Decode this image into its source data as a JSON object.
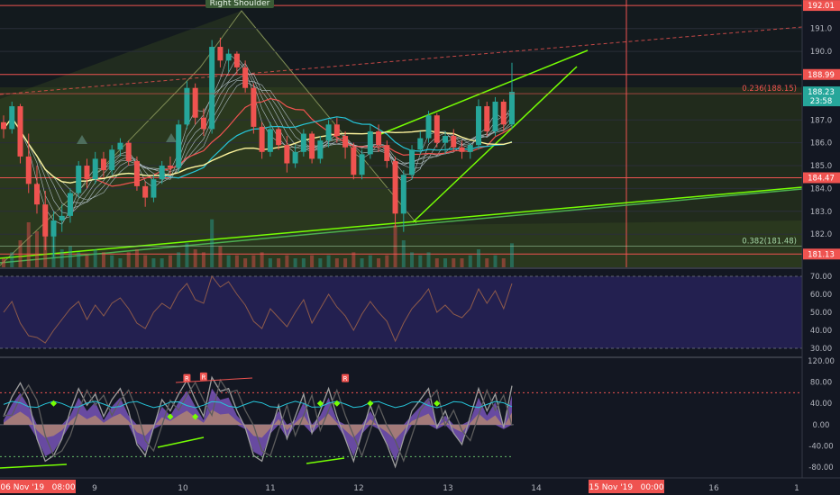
{
  "chart_data": {
    "type": "candlestick",
    "price_axis": {
      "ticks": [
        182.0,
        183.0,
        184.0,
        185.0,
        186.0,
        187.0,
        190.0,
        191.0
      ],
      "range": [
        180.55,
        192.25
      ],
      "badges": [
        {
          "label": "192.01",
          "value": 192.01,
          "color": "#ef5350",
          "text_color": "#ffffff"
        },
        {
          "label": "188.99",
          "value": 188.99,
          "color": "#ef5350",
          "text_color": "#ffffff"
        },
        {
          "label": "188.23",
          "value": 188.23,
          "color": "#26a69a",
          "text_color": "#ffffff",
          "sub": "23:58"
        },
        {
          "label": "184.47",
          "value": 184.47,
          "color": "#ef5350",
          "text_color": "#ffffff"
        },
        {
          "label": "181.13",
          "value": 181.13,
          "color": "#ef5350",
          "text_color": "#ffffff"
        }
      ]
    },
    "annotations": {
      "pattern_label": "Right Shoulder",
      "fib_levels": [
        {
          "label": "0.236(188.15)",
          "value": 188.15,
          "color": "#ef5350"
        },
        {
          "label": "0.382(181.48)",
          "value": 181.48,
          "color": "#a5d6a7"
        }
      ],
      "marker_letter": "R"
    },
    "horizontal_levels": [
      192.01,
      188.99,
      184.47,
      181.13
    ],
    "candles_ohlc": [
      [
        186.9,
        187.2,
        186.2,
        186.6
      ],
      [
        186.6,
        187.8,
        186.4,
        187.6
      ],
      [
        187.6,
        187.7,
        185.1,
        185.4
      ],
      [
        185.4,
        186.4,
        183.8,
        184.2
      ],
      [
        184.2,
        185.0,
        182.9,
        183.3
      ],
      [
        183.3,
        183.9,
        181.3,
        181.9
      ],
      [
        181.9,
        183.0,
        181.0,
        182.6
      ],
      [
        182.6,
        183.3,
        182.1,
        182.8
      ],
      [
        182.8,
        184.0,
        182.5,
        183.8
      ],
      [
        183.8,
        185.2,
        183.6,
        185.0
      ],
      [
        185.0,
        185.3,
        184.0,
        184.4
      ],
      [
        184.4,
        185.6,
        184.2,
        185.3
      ],
      [
        185.3,
        185.6,
        184.5,
        184.8
      ],
      [
        184.8,
        185.9,
        184.6,
        185.7
      ],
      [
        185.7,
        186.2,
        185.4,
        186.0
      ],
      [
        186.0,
        186.1,
        185.0,
        185.2
      ],
      [
        185.2,
        185.4,
        183.9,
        184.1
      ],
      [
        184.1,
        184.3,
        183.2,
        183.6
      ],
      [
        183.6,
        184.6,
        183.4,
        184.4
      ],
      [
        184.4,
        185.2,
        184.2,
        185.0
      ],
      [
        185.0,
        185.4,
        184.6,
        184.9
      ],
      [
        184.9,
        187.0,
        184.7,
        186.8
      ],
      [
        186.8,
        188.7,
        186.6,
        188.4
      ],
      [
        188.4,
        188.6,
        186.8,
        187.1
      ],
      [
        187.1,
        187.5,
        186.3,
        186.6
      ],
      [
        186.6,
        190.5,
        186.4,
        190.2
      ],
      [
        190.2,
        190.6,
        189.3,
        189.6
      ],
      [
        189.6,
        190.1,
        189.1,
        189.9
      ],
      [
        189.9,
        190.0,
        189.0,
        189.3
      ],
      [
        189.3,
        189.6,
        188.2,
        188.4
      ],
      [
        188.4,
        188.6,
        186.4,
        186.7
      ],
      [
        186.7,
        186.9,
        185.3,
        185.6
      ],
      [
        185.6,
        186.9,
        185.4,
        186.6
      ],
      [
        186.6,
        186.7,
        185.7,
        185.9
      ],
      [
        185.9,
        186.3,
        184.7,
        185.1
      ],
      [
        185.1,
        185.9,
        184.9,
        185.6
      ],
      [
        185.6,
        186.6,
        185.4,
        186.4
      ],
      [
        186.4,
        186.5,
        185.1,
        185.3
      ],
      [
        185.3,
        186.3,
        185.1,
        186.1
      ],
      [
        186.1,
        187.0,
        185.8,
        186.8
      ],
      [
        186.8,
        187.1,
        186.0,
        186.3
      ],
      [
        186.3,
        186.5,
        185.3,
        185.8
      ],
      [
        185.8,
        186.0,
        184.4,
        184.6
      ],
      [
        184.6,
        185.7,
        184.4,
        185.5
      ],
      [
        185.5,
        186.8,
        185.3,
        186.5
      ],
      [
        186.5,
        186.8,
        185.6,
        185.9
      ],
      [
        185.9,
        186.1,
        184.9,
        185.2
      ],
      [
        185.2,
        185.4,
        182.3,
        182.9
      ],
      [
        182.9,
        184.8,
        182.1,
        184.6
      ],
      [
        184.6,
        185.9,
        184.4,
        185.7
      ],
      [
        185.7,
        186.5,
        185.5,
        186.2
      ],
      [
        186.2,
        187.4,
        186.0,
        187.2
      ],
      [
        187.2,
        187.3,
        185.8,
        186.0
      ],
      [
        186.0,
        186.5,
        185.5,
        186.3
      ],
      [
        186.3,
        186.6,
        185.6,
        185.8
      ],
      [
        185.8,
        186.1,
        185.3,
        185.6
      ],
      [
        185.6,
        186.0,
        185.3,
        185.9
      ],
      [
        185.9,
        187.9,
        185.7,
        187.6
      ],
      [
        187.6,
        187.8,
        186.3,
        186.5
      ],
      [
        186.5,
        188.0,
        186.3,
        187.8
      ],
      [
        187.8,
        187.9,
        186.5,
        186.8
      ],
      [
        186.8,
        189.5,
        186.6,
        188.23
      ]
    ],
    "volume": [
      3,
      5,
      9,
      15,
      12,
      18,
      14,
      6,
      7,
      5,
      4,
      6,
      5,
      4,
      3,
      5,
      6,
      4,
      3,
      3,
      4,
      5,
      8,
      6,
      5,
      16,
      7,
      4,
      4,
      3,
      4,
      5,
      3,
      3,
      4,
      3,
      3,
      4,
      3,
      4,
      3,
      3,
      5,
      3,
      4,
      3,
      4,
      14,
      9,
      5,
      4,
      5,
      3,
      3,
      3,
      3,
      4,
      6,
      3,
      4,
      3,
      8
    ],
    "rsi": {
      "ticks": [
        30.0,
        40.0,
        50.0,
        60.0,
        70.0
      ],
      "range": [
        26,
        74
      ],
      "upper": 70,
      "lower": 30,
      "values": [
        50,
        56,
        44,
        37,
        36,
        33,
        40,
        46,
        52,
        56,
        46,
        54,
        48,
        55,
        58,
        52,
        44,
        41,
        50,
        55,
        52,
        61,
        66,
        57,
        55,
        70,
        64,
        67,
        60,
        54,
        45,
        41,
        52,
        47,
        42,
        50,
        57,
        44,
        52,
        60,
        53,
        48,
        40,
        49,
        56,
        50,
        45,
        34,
        44,
        52,
        57,
        63,
        50,
        54,
        49,
        47,
        52,
        63,
        55,
        62,
        52,
        66
      ]
    },
    "oscillator": {
      "ticks": [
        -80.0,
        -40.0,
        0.0,
        40.0,
        80.0,
        120.0
      ],
      "range": [
        -100,
        125
      ],
      "upper_dashed": 60,
      "lower_dashed": -60,
      "wave": [
        10,
        45,
        70,
        40,
        -30,
        -70,
        -60,
        -30,
        20,
        60,
        30,
        50,
        10,
        40,
        60,
        20,
        -40,
        -60,
        -10,
        40,
        20,
        50,
        75,
        40,
        10,
        80,
        55,
        60,
        20,
        -10,
        -60,
        -70,
        -20,
        30,
        -30,
        10,
        50,
        -20,
        20,
        60,
        10,
        -30,
        -70,
        -20,
        30,
        -10,
        -40,
        -80,
        -30,
        20,
        40,
        60,
        -10,
        20,
        -20,
        -40,
        10,
        60,
        20,
        50,
        -10,
        65
      ],
      "dots": [
        [
          6,
          40
        ],
        [
          20,
          15
        ],
        [
          23,
          15
        ],
        [
          38,
          40
        ],
        [
          40,
          40
        ],
        [
          44,
          40
        ],
        [
          52,
          40
        ]
      ],
      "markers": [
        [
          22,
          85
        ],
        [
          24,
          88
        ],
        [
          41,
          85
        ]
      ]
    },
    "time_axis": {
      "labels": [
        "9",
        "10",
        "11",
        "12",
        "13",
        "14",
        "16",
        "1"
      ],
      "badges": [
        "06 Nov '19   08:00",
        "15 Nov '19   00:00"
      ]
    }
  }
}
